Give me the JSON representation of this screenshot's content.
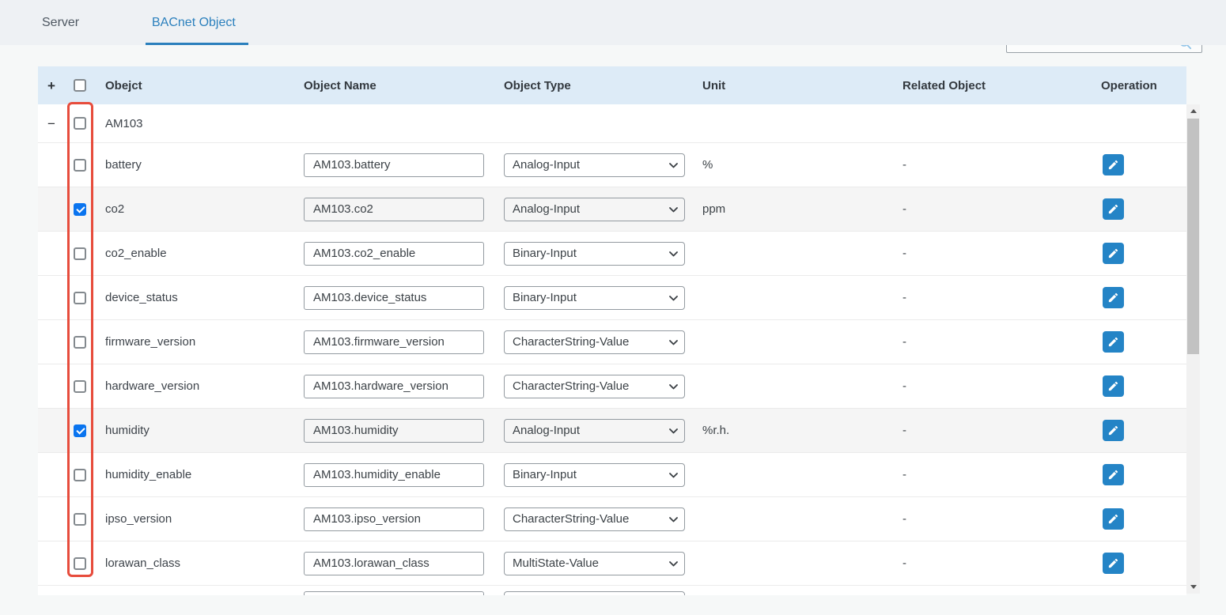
{
  "tab_bar": {
    "tabs": [
      {
        "label": "Server",
        "active": false
      },
      {
        "label": "BACnet Object",
        "active": true
      }
    ]
  },
  "search_box": {
    "value": "",
    "icon": "search-icon"
  },
  "table": {
    "headers": {
      "object": "Obejct",
      "object_name": "Object Name",
      "object_type": "Object Type",
      "unit": "Unit",
      "related_object": "Related Object",
      "operation": "Operation"
    },
    "icons": {
      "expand_all": "+",
      "collapse_group": "−",
      "edit": "pencil-icon"
    },
    "group_row": {
      "label": "AM103",
      "checked": false
    },
    "rows": [
      {
        "object": "battery",
        "object_name": "AM103.battery",
        "object_type": "Analog-Input",
        "unit": "%",
        "related_object": "-",
        "checked": false
      },
      {
        "object": "co2",
        "object_name": "AM103.co2",
        "object_type": "Analog-Input",
        "unit": "ppm",
        "related_object": "-",
        "checked": true
      },
      {
        "object": "co2_enable",
        "object_name": "AM103.co2_enable",
        "object_type": "Binary-Input",
        "unit": "",
        "related_object": "-",
        "checked": false
      },
      {
        "object": "device_status",
        "object_name": "AM103.device_status",
        "object_type": "Binary-Input",
        "unit": "",
        "related_object": "-",
        "checked": false
      },
      {
        "object": "firmware_version",
        "object_name": "AM103.firmware_version",
        "object_type": "CharacterString-Value",
        "unit": "",
        "related_object": "-",
        "checked": false
      },
      {
        "object": "hardware_version",
        "object_name": "AM103.hardware_version",
        "object_type": "CharacterString-Value",
        "unit": "",
        "related_object": "-",
        "checked": false
      },
      {
        "object": "humidity",
        "object_name": "AM103.humidity",
        "object_type": "Analog-Input",
        "unit": "%r.h.",
        "related_object": "-",
        "checked": true
      },
      {
        "object": "humidity_enable",
        "object_name": "AM103.humidity_enable",
        "object_type": "Binary-Input",
        "unit": "",
        "related_object": "-",
        "checked": false
      },
      {
        "object": "ipso_version",
        "object_name": "AM103.ipso_version",
        "object_type": "CharacterString-Value",
        "unit": "",
        "related_object": "-",
        "checked": false
      },
      {
        "object": "lorawan_class",
        "object_name": "AM103.lorawan_class",
        "object_type": "MultiState-Value",
        "unit": "",
        "related_object": "-",
        "checked": false
      }
    ],
    "partial_row_visible": true
  },
  "annotation": {
    "shape": "rectangle",
    "color": "#e74c3c",
    "target": "row-checkbox-column"
  },
  "colors": {
    "tab_active": "#2b80bd",
    "header_bg": "#ddebf7",
    "checked_row_bg": "#f5f5f5",
    "edit_button_bg": "#2484c6",
    "checkbox_checked": "#0a74ef",
    "annotation_red": "#e74c3c"
  }
}
